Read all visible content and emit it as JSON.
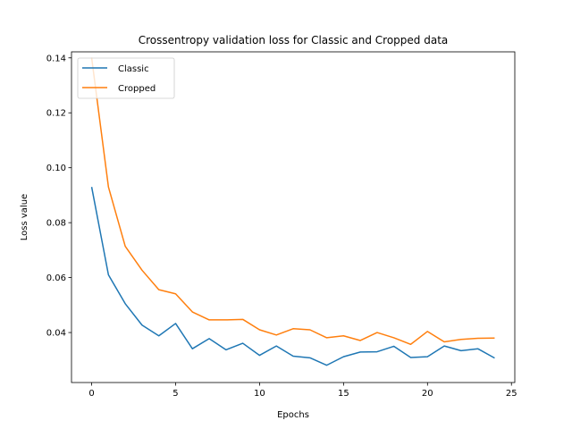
{
  "chart_data": {
    "type": "line",
    "title": "Crossentropy validation loss for Classic and Cropped data",
    "xlabel": "Epochs",
    "ylabel": "Loss value",
    "xlim": [
      -1.2,
      25.2
    ],
    "ylim": [
      0.0218,
      0.1422
    ],
    "xticks": [
      0,
      5,
      10,
      15,
      20,
      25
    ],
    "xtick_labels": [
      "0",
      "5",
      "10",
      "15",
      "20",
      "25"
    ],
    "yticks": [
      0.04,
      0.06,
      0.08,
      0.1,
      0.12,
      0.14
    ],
    "ytick_labels": [
      "0.04",
      "0.06",
      "0.08",
      "0.10",
      "0.12",
      "0.14"
    ],
    "grid": false,
    "legend_position": "top-left",
    "x": [
      0,
      1,
      2,
      3,
      4,
      5,
      6,
      7,
      8,
      9,
      10,
      11,
      12,
      13,
      14,
      15,
      16,
      17,
      18,
      19,
      20,
      21,
      22,
      23,
      24
    ],
    "series": [
      {
        "name": "Classic",
        "color": "#1f77b4",
        "values": [
          0.093,
          0.061,
          0.0505,
          0.0427,
          0.0388,
          0.0433,
          0.0341,
          0.0378,
          0.0337,
          0.0361,
          0.0317,
          0.0351,
          0.0314,
          0.0308,
          0.0281,
          0.0312,
          0.0329,
          0.033,
          0.035,
          0.0309,
          0.0312,
          0.0351,
          0.0334,
          0.0341,
          0.0307
        ]
      },
      {
        "name": "Cropped",
        "color": "#ff7f0e",
        "values": [
          0.14,
          0.093,
          0.0714,
          0.0627,
          0.0556,
          0.0541,
          0.0475,
          0.0446,
          0.0446,
          0.0448,
          0.041,
          0.0391,
          0.0414,
          0.041,
          0.0381,
          0.0388,
          0.0371,
          0.04,
          0.0381,
          0.0357,
          0.0404,
          0.0366,
          0.0375,
          0.0379,
          0.038
        ]
      }
    ]
  }
}
